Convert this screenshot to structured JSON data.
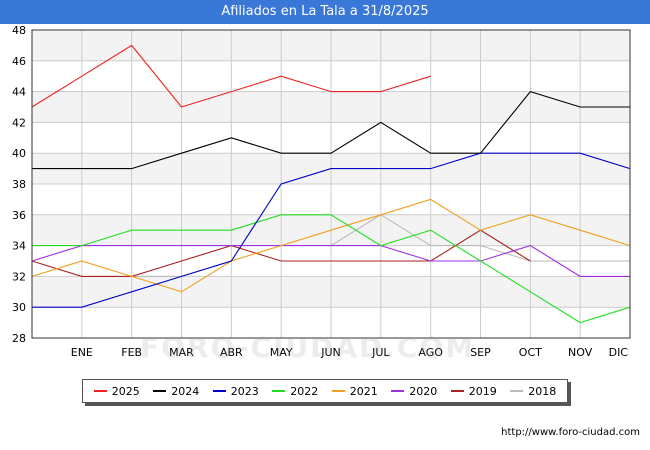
{
  "title": "Afiliados en La Tala a 31/8/2025",
  "source_url": "http://www.foro-ciudad.com",
  "watermark": "FORO-CIUDAD.COM",
  "colors": {
    "title_bg": "#3a78d8",
    "plot_band": "#f3f3f3",
    "grid": "#cccccc"
  },
  "chart_data": {
    "type": "line",
    "title": "Afiliados en La Tala a 31/8/2025",
    "xlabel": "",
    "ylabel": "",
    "categories": [
      "",
      "ENE",
      "FEB",
      "MAR",
      "ABR",
      "MAY",
      "JUN",
      "JUL",
      "AGO",
      "SEP",
      "OCT",
      "NOV",
      "DIC"
    ],
    "ylim": [
      28,
      48
    ],
    "yticks": [
      28,
      30,
      32,
      34,
      36,
      38,
      40,
      42,
      44,
      46,
      48
    ],
    "grid": true,
    "legend_position": "bottom",
    "series": [
      {
        "name": "2025",
        "color": "#ee2222",
        "values": [
          43,
          45,
          47,
          43,
          44,
          45,
          44,
          44,
          45,
          null,
          null,
          null,
          null
        ]
      },
      {
        "name": "2024",
        "color": "#000000",
        "values": [
          39,
          39,
          39,
          40,
          41,
          40,
          40,
          42,
          40,
          40,
          44,
          43,
          43
        ]
      },
      {
        "name": "2023",
        "color": "#0000cc",
        "values": [
          30,
          30,
          31,
          32,
          33,
          38,
          39,
          39,
          39,
          40,
          40,
          40,
          39
        ]
      },
      {
        "name": "2022",
        "color": "#22dd22",
        "values": [
          34,
          34,
          35,
          35,
          35,
          36,
          36,
          34,
          35,
          33,
          31,
          29,
          30
        ]
      },
      {
        "name": "2021",
        "color": "#f0a020",
        "values": [
          32,
          33,
          32,
          31,
          33,
          34,
          35,
          36,
          37,
          35,
          36,
          35,
          34
        ]
      },
      {
        "name": "2020",
        "color": "#a030e0",
        "values": [
          33,
          34,
          34,
          34,
          34,
          34,
          34,
          34,
          33,
          33,
          34,
          32,
          32
        ]
      },
      {
        "name": "2019",
        "color": "#aa2222",
        "values": [
          33,
          32,
          32,
          33,
          34,
          33,
          33,
          33,
          33,
          35,
          33,
          null,
          null
        ]
      },
      {
        "name": "2018",
        "color": "#bbbbbb",
        "values": [
          null,
          null,
          32,
          32,
          33,
          null,
          34,
          36,
          34,
          34,
          33,
          33,
          33
        ]
      }
    ]
  }
}
